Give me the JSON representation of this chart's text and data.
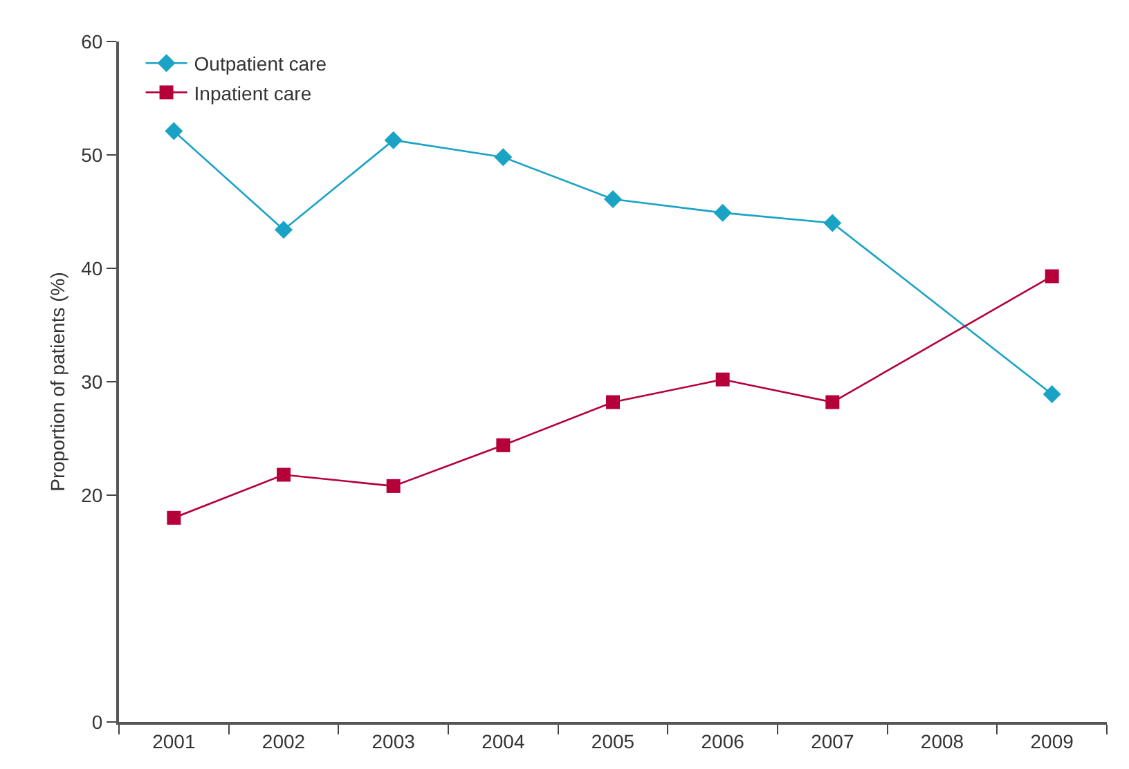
{
  "chart_data": {
    "type": "line",
    "ylabel": "Proportion of patients (%)",
    "categories": [
      "2001",
      "2002",
      "2003",
      "2004",
      "2005",
      "2006",
      "2007",
      "2008",
      "2009"
    ],
    "series": [
      {
        "name": "Outpatient care",
        "color": "#1aa3c4",
        "marker": "diamond",
        "values": [
          52.1,
          43.4,
          51.3,
          49.8,
          46.1,
          44.9,
          44.0,
          null,
          28.9
        ]
      },
      {
        "name": "Inpatient care",
        "color": "#b5003a",
        "marker": "square",
        "values": [
          18.0,
          21.8,
          20.8,
          24.4,
          28.2,
          30.2,
          28.2,
          null,
          39.3
        ]
      }
    ],
    "ylim": [
      0,
      60
    ],
    "yticks": [
      0,
      20,
      30,
      40,
      50,
      60
    ],
    "grid": false,
    "legend": "top left",
    "line_style": "solid"
  }
}
